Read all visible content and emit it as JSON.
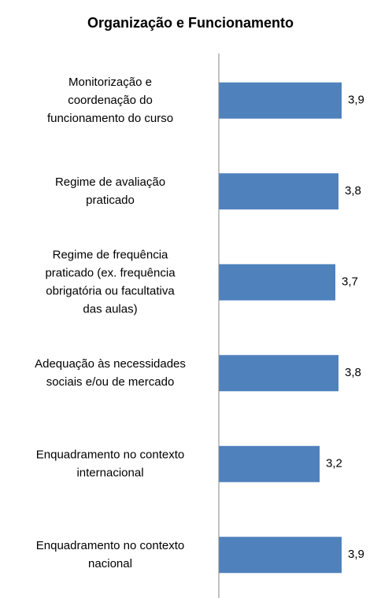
{
  "chart_data": {
    "type": "barh",
    "title": "Organização e Funcionamento",
    "categories": [
      "Monitorização e\ncoordenação do\nfuncionamento do curso",
      "Regime de avaliação\npraticado",
      "Regime de frequência\npraticado (ex. frequência\nobrigatória ou facultativa\ndas aulas)",
      "Adequação às necessidades\nsociais e/ou de mercado",
      "Enquadramento no contexto\ninternacional",
      "Enquadramento no contexto\nnacional"
    ],
    "values": [
      3.9,
      3.8,
      3.7,
      3.8,
      3.2,
      3.9
    ],
    "value_labels": [
      "3,9",
      "3,8",
      "3,7",
      "3,8",
      "3,2",
      "3,9"
    ],
    "color": "#4f81bd",
    "xlim": [
      0,
      5
    ]
  }
}
